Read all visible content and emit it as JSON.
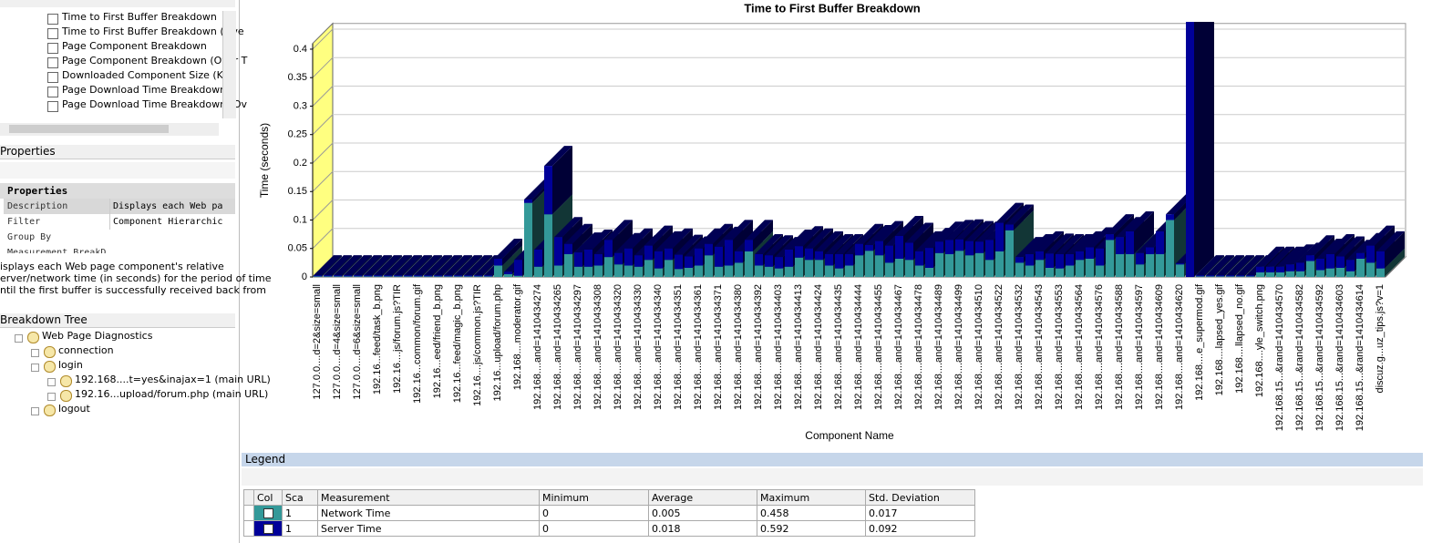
{
  "graph_list": [
    "Time to First Buffer Breakdown",
    "Time to First Buffer Breakdown (Ove",
    "Page Component Breakdown",
    "Page Component Breakdown (Over T",
    "Downloaded Component Size (KB)",
    "Page Download Time Breakdown",
    "Page Download Time Breakdown (Ov"
  ],
  "properties": {
    "title": "Properties",
    "group": "Properties",
    "rows": [
      {
        "name": "Description",
        "value": "Displays each Web pa"
      },
      {
        "name": "Filter",
        "value": "Component Hierarchic"
      },
      {
        "name": "Group By"
      },
      {
        "name": "Measurement BreakD"
      }
    ],
    "description": [
      "isplays each Web page component's relative",
      "erver/network time (in seconds) for the period of time",
      "ntil the first buffer is successfully received back from"
    ]
  },
  "breakdown_tree": {
    "title": "Breakdown Tree",
    "nodes": [
      {
        "label": "Web Page Diagnostics",
        "level": 0
      },
      {
        "label": "connection",
        "level": 1
      },
      {
        "label": "login",
        "level": 1
      },
      {
        "label": "192.168....t=yes&inajax=1 (main URL)",
        "level": 2
      },
      {
        "label": "192.16...upload/forum.php (main URL)",
        "level": 2
      },
      {
        "label": "logout",
        "level": 1
      }
    ]
  },
  "chart_data": {
    "type": "bar3d_stacked",
    "title": "Time to First Buffer Breakdown",
    "y_label": "Time (seconds)",
    "x_label": "Component Name",
    "ylim": [
      0,
      0.41
    ],
    "yticks": [
      0,
      0.05,
      0.1,
      0.15,
      0.2,
      0.25,
      0.3,
      0.35,
      0.4
    ],
    "grid": true,
    "categories": [
      "127.0.0....d=2&size=small",
      null,
      "127.0.0....d=4&size=small",
      null,
      "127.0.0....d=6&size=small",
      null,
      "192.16...feed/task_b.png",
      null,
      "192.16....js/forum.js?TIR",
      null,
      "192.16...common/forum.gif",
      null,
      "192.16...eed/friend_b.png",
      null,
      "192.16...feed/magic_b.png",
      null,
      "192.16....js/common.js?TIR",
      null,
      "192.16...upload/forum.php",
      null,
      "192.168....moderator.gif",
      null,
      "192.168....and=1410434274",
      null,
      "192.168....and=1410434265",
      null,
      "192.168....and=1410434297",
      null,
      "192.168....and=1410434308",
      null,
      "192.168....and=1410434320",
      null,
      "192.168....and=1410434330",
      null,
      "192.168....and=1410434340",
      null,
      "192.168....and=1410434351",
      null,
      "192.168....and=1410434361",
      null,
      "192.168....and=1410434371",
      null,
      "192.168....and=1410434380",
      null,
      "192.168....and=1410434392",
      null,
      "192.168....and=1410434403",
      null,
      "192.168....and=1410434413",
      null,
      "192.168....and=1410434424",
      null,
      "192.168....and=1410434435",
      null,
      "192.168....and=1410434444",
      null,
      "192.168....and=1410434455",
      null,
      "192.168....and=1410434467",
      null,
      "192.168....and=1410434478",
      null,
      "192.168....and=1410434489",
      null,
      "192.168....and=1410434499",
      null,
      "192.168....and=1410434510",
      null,
      "192.168....and=1410434522",
      null,
      "192.168....and=1410434532",
      null,
      "192.168....and=1410434543",
      null,
      "192.168....and=1410434553",
      null,
      "192.168....and=1410434564",
      null,
      "192.168....and=1410434576",
      null,
      "192.168....and=1410434588",
      null,
      "192.168....and=1410434597",
      null,
      "192.168....and=1410434609",
      null,
      "192.168....and=1410434620",
      null,
      "192.168....e_supermod.gif",
      null,
      "192.168....lapsed_yes.gif",
      null,
      "192.168....llapsed_no.gif",
      null,
      "192.168....yle_switch.png",
      null,
      "192.168.15...&rand=1410434570",
      null,
      "192.168.15...&rand=1410434582",
      null,
      "192.168.15...&rand=1410434592",
      null,
      "192.168.15...&rand=1410434603",
      null,
      "192.168.15...&rand=1410434614",
      null,
      "discuz.g...uz_tips.js?v=1"
    ],
    "series": [
      {
        "name": "Network Time",
        "color": "#339999",
        "values": [
          0.001,
          0.001,
          0.001,
          0.001,
          0.001,
          0.001,
          0.001,
          0.001,
          0.001,
          0.001,
          0.001,
          0.001,
          0.001,
          0.001,
          0.001,
          0.001,
          0.001,
          0.001,
          0.02,
          0.005,
          0.002,
          0.13,
          0.018,
          0.11,
          0.02,
          0.04,
          0.018,
          0.018,
          0.02,
          0.035,
          0.022,
          0.02,
          0.018,
          0.03,
          0.015,
          0.03,
          0.014,
          0.016,
          0.02,
          0.038,
          0.018,
          0.02,
          0.025,
          0.045,
          0.02,
          0.018,
          0.015,
          0.018,
          0.034,
          0.03,
          0.03,
          0.02,
          0.015,
          0.02,
          0.038,
          0.046,
          0.038,
          0.025,
          0.032,
          0.03,
          0.02,
          0.016,
          0.042,
          0.04,
          0.046,
          0.038,
          0.042,
          0.03,
          0.045,
          0.082,
          0.025,
          0.02,
          0.03,
          0.016,
          0.015,
          0.02,
          0.03,
          0.032,
          0.02,
          0.065,
          0.04,
          0.04,
          0.022,
          0.04,
          0.04,
          0.1,
          0.022,
          0,
          0.001,
          0.001,
          0.001,
          0.001,
          0.001,
          0.001,
          0.008,
          0.008,
          0.008,
          0.01,
          0.01,
          0.028,
          0.012,
          0.015,
          0.016,
          0.01,
          0.032,
          0.025,
          0.015
        ]
      },
      {
        "name": "Server Time",
        "color": "#000099",
        "values": [
          0.002,
          0.002,
          0.002,
          0.002,
          0.002,
          0.002,
          0.002,
          0.002,
          0.002,
          0.002,
          0.002,
          0.002,
          0.002,
          0.002,
          0.002,
          0.002,
          0.002,
          0.002,
          0.012,
          0.004,
          0.028,
          0.006,
          0.03,
          0.085,
          0.05,
          0.018,
          0.025,
          0.03,
          0.02,
          0.03,
          0.02,
          0.03,
          0.02,
          0.025,
          0.03,
          0.02,
          0.025,
          0.02,
          0.03,
          0.02,
          0.035,
          0.045,
          0.02,
          0.02,
          0.02,
          0.02,
          0.02,
          0.03,
          0.02,
          0.02,
          0.015,
          0.02,
          0.025,
          0.02,
          0.02,
          0.01,
          0.025,
          0.03,
          0.04,
          0.03,
          0.025,
          0.035,
          0.02,
          0.025,
          0.02,
          0.025,
          0.02,
          0.035,
          0.05,
          0.01,
          0.01,
          0.02,
          0.015,
          0.025,
          0.025,
          0.02,
          0.015,
          0.02,
          0.03,
          0.01,
          0.03,
          0.04,
          0.02,
          0.012,
          0.04,
          0.01,
          0.002,
          0.45,
          0.002,
          0.002,
          0.002,
          0.002,
          0.002,
          0.002,
          0.01,
          0.01,
          0.01,
          0.012,
          0.015,
          0.01,
          0.02,
          0.025,
          0.02,
          0.02,
          0.01,
          0.03,
          0.03
        ]
      }
    ]
  },
  "legend_table": {
    "title": "Legend",
    "columns": [
      "Col",
      "Sca",
      "Measurement",
      "Minimum",
      "Average",
      "Maximum",
      "Std. Deviation"
    ],
    "rows": [
      {
        "scale": 1,
        "minimum": 0,
        "average": 0.005,
        "maximum": 0.458,
        "std_deviation": 0.017
      },
      {
        "scale": 1,
        "minimum": 0,
        "average": 0.018,
        "maximum": 0.592,
        "std_deviation": 0.092
      }
    ]
  }
}
